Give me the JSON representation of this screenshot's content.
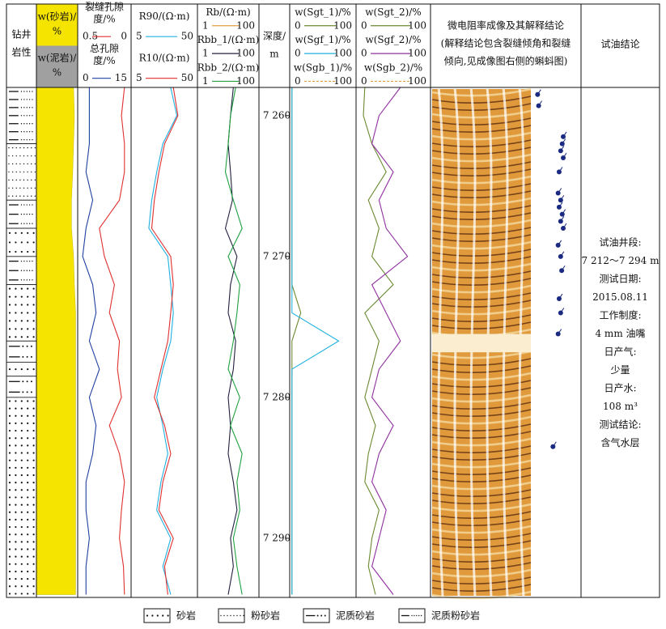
{
  "header": {
    "lithology": [
      "钻井",
      "岩性"
    ],
    "sand": [
      "w(砂岩)/",
      "%"
    ],
    "mud": [
      "w(泥岩)/",
      "%"
    ],
    "depth": [
      "深度/",
      "m"
    ],
    "image": [
      "微电阻率成像及其解释结论",
      "(解释结论包含裂缝倾角和裂缝",
      "倾向,见成像图右侧的蝌蚪图)"
    ],
    "test": "试油结论"
  },
  "depth": {
    "ylim": [
      7258,
      7294.2
    ],
    "ticks": [
      {
        "value": 7260,
        "label": "7 260"
      },
      {
        "value": 7270,
        "label": "7 270"
      },
      {
        "value": 7280,
        "label": "7 280"
      },
      {
        "value": 7290,
        "label": "7 290"
      }
    ],
    "samples": [
      7258,
      7260,
      7262,
      7264,
      7266,
      7268,
      7270,
      7272,
      7274,
      7276,
      7278,
      7280,
      7282,
      7284,
      7286,
      7288,
      7290,
      7292,
      7294
    ]
  },
  "sand": {
    "values": [
      90,
      92,
      90,
      88,
      85,
      85,
      90,
      92,
      95,
      95,
      95,
      95,
      95,
      95,
      95,
      95,
      95,
      95,
      95
    ]
  },
  "tracks": [
    {
      "curves": [
        {
          "name": [
            "裂缝孔隙",
            "度/%"
          ],
          "xlim": [
            0.5,
            0
          ],
          "color": "#e03030",
          "values": [
            0.05,
            0.08,
            0.05,
            0.05,
            0.1,
            0.3,
            0.25,
            0.15,
            0.2,
            0.1,
            0.12,
            0.08,
            0.2,
            0.1,
            0.05,
            0.08,
            0.1,
            0.06,
            0.05
          ]
        },
        {
          "name": [
            "总孔隙",
            "度/%"
          ],
          "xlim": [
            0,
            15
          ],
          "color": "#2040a0",
          "values": [
            3,
            3,
            3,
            2,
            4,
            2,
            1,
            4,
            5,
            3,
            6,
            3,
            5,
            4,
            2,
            2,
            3,
            2,
            2
          ]
        }
      ]
    },
    {
      "curves": [
        {
          "name": [
            "R90/(Ω·m)"
          ],
          "xlim": [
            5,
            50
          ],
          "log": true,
          "color": "#20b0e0",
          "values": [
            20,
            25,
            15,
            12,
            10,
            9,
            18,
            20,
            22,
            20,
            15,
            12,
            15,
            18,
            14,
            12,
            20,
            15,
            20
          ]
        },
        {
          "name": [
            "R10/(Ω·m)"
          ],
          "xlim": [
            5,
            50
          ],
          "log": true,
          "color": "#e03030",
          "values": [
            22,
            26,
            16,
            13,
            11,
            10,
            20,
            22,
            20,
            18,
            14,
            11,
            16,
            20,
            15,
            13,
            22,
            16,
            18
          ]
        }
      ]
    },
    {
      "curves": [
        {
          "name": [
            "Rb/(Ω·m)"
          ],
          "xlim": [
            1,
            100
          ],
          "log": true,
          "color": "#e0a040"
        },
        {
          "name": [
            "Rbb_1/(Ω·m)"
          ],
          "xlim": [
            1,
            100
          ],
          "log": true,
          "color": "#202040",
          "values": [
            15,
            12,
            10,
            12,
            14,
            8,
            20,
            12,
            10,
            18,
            15,
            10,
            12,
            10,
            15,
            20,
            12,
            15,
            10
          ]
        },
        {
          "name": [
            "Rbb_2/(Ω·m)"
          ],
          "xlim": [
            1,
            100
          ],
          "log": true,
          "color": "#20a040",
          "values": [
            18,
            12,
            10,
            8,
            15,
            30,
            10,
            25,
            20,
            15,
            10,
            25,
            12,
            30,
            20,
            25,
            15,
            20,
            30
          ]
        }
      ]
    },
    {
      "curves": [
        {
          "name": [
            "w(Sgt_1)/%"
          ],
          "xlim": [
            0,
            100
          ],
          "color": "#6a8a30",
          "values": [
            1,
            1,
            1,
            1,
            1,
            1,
            1,
            1,
            15,
            1,
            1,
            1,
            1,
            1,
            1,
            1,
            1,
            1,
            1
          ]
        },
        {
          "name": [
            "w(Sgf_1)/%"
          ],
          "xlim": [
            0,
            100
          ],
          "color": "#20b0e0",
          "values": [
            1,
            1,
            1,
            1,
            1,
            1,
            1,
            1,
            1,
            75,
            1,
            1,
            1,
            1,
            1,
            1,
            1,
            1,
            1
          ]
        },
        {
          "name": [
            "w(Sgb_1)/%"
          ],
          "xlim": [
            0,
            100
          ],
          "color": "#e0a040",
          "dash": true
        }
      ]
    },
    {
      "curves": [
        {
          "name": [
            "w(Sgt_2)/%"
          ],
          "xlim": [
            0,
            100
          ],
          "color": "#6a8a30",
          "values": [
            10,
            8,
            20,
            40,
            15,
            30,
            20,
            50,
            10,
            30,
            20,
            10,
            25,
            15,
            10,
            30,
            20,
            15,
            25
          ]
        },
        {
          "name": [
            "w(Sgf_2)/%"
          ],
          "xlim": [
            0,
            100
          ],
          "color": "#9030a0",
          "values": [
            60,
            30,
            20,
            50,
            30,
            40,
            70,
            20,
            40,
            60,
            30,
            20,
            50,
            30,
            20,
            40,
            30,
            20,
            50
          ]
        },
        {
          "name": [
            "w(Sgb_2)/%"
          ],
          "xlim": [
            0,
            100
          ],
          "color": "#e0a040",
          "dash": true
        }
      ]
    }
  ],
  "lithology": [
    {
      "top": 7258,
      "bottom": 7262,
      "type": "泥质粉砂岩"
    },
    {
      "top": 7262,
      "bottom": 7266,
      "type": "粉砂岩"
    },
    {
      "top": 7266,
      "bottom": 7268,
      "type": "泥质粉砂岩"
    },
    {
      "top": 7268,
      "bottom": 7270,
      "type": "砂岩"
    },
    {
      "top": 7270,
      "bottom": 7272,
      "type": "泥质粉砂岩"
    },
    {
      "top": 7272,
      "bottom": 7276,
      "type": "砂岩"
    },
    {
      "top": 7276,
      "bottom": 7277.5,
      "type": "泥质砂岩"
    },
    {
      "top": 7277.5,
      "bottom": 7278.5,
      "type": "砂岩"
    },
    {
      "top": 7278.5,
      "bottom": 7280,
      "type": "泥质砂岩"
    },
    {
      "top": 7280,
      "bottom": 7294.2,
      "type": "砂岩"
    }
  ],
  "tadpoles": {
    "depth": [
      7258.5,
      7259.3,
      7261.5,
      7262,
      7262.5,
      7263,
      7264,
      7265.5,
      7266,
      7266.5,
      7267,
      7267.5,
      7268,
      7269.2,
      7270,
      7271,
      7273,
      7274,
      7275.5,
      7283.5
    ],
    "dip": [
      10,
      12,
      60,
      58,
      55,
      60,
      52,
      50,
      55,
      52,
      58,
      55,
      60,
      50,
      55,
      57,
      52,
      55,
      50,
      40
    ]
  },
  "test": [
    "试油井段:",
    "7 212～7 294 m",
    "测试日期:",
    "2015.08.11",
    "工作制度:",
    "4 mm 油嘴",
    "日产气:",
    "少量",
    "日产水:",
    "108 m³",
    "测试结论:",
    "含气水层"
  ],
  "legend": [
    "砂岩",
    "粉砂岩",
    "泥质砂岩",
    "泥质粉砂岩"
  ]
}
